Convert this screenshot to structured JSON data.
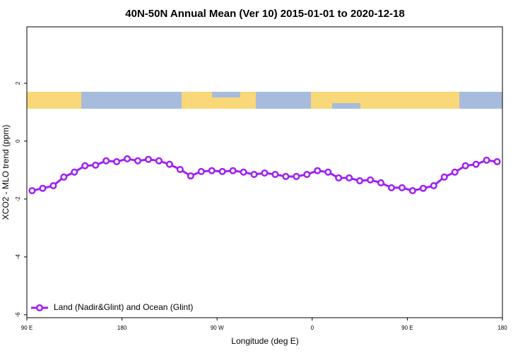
{
  "chart_data": {
    "type": "line",
    "title": "40N-50N Annual Mean (Ver 10)   2015-01-01 to 2020-12-18",
    "x_label": "Longitude (deg E)",
    "y_label": "XCO2 - MLO trend (ppm)",
    "xlim": [
      90,
      540
    ],
    "ylim": [
      -6.1,
      3.95
    ],
    "xticks": [
      {
        "value": 90,
        "label": "90 E"
      },
      180,
      {
        "value": 270,
        "label": "90 W"
      },
      {
        "value": 360,
        "label": "0"
      },
      {
        "value": 450,
        "label": "90 E"
      },
      {
        "value": 540,
        "label": "180"
      }
    ],
    "yticks": [
      -6,
      -4,
      -2,
      0,
      2
    ],
    "legend": "bottom-left",
    "x": [
      95,
      105,
      115,
      125,
      135,
      145,
      155,
      165,
      175,
      185,
      195,
      205,
      215,
      225,
      235,
      245,
      255,
      265,
      275,
      285,
      295,
      305,
      315,
      325,
      335,
      345,
      355,
      365,
      375,
      385,
      395,
      405,
      415,
      425,
      435,
      445,
      455,
      465,
      475,
      485,
      495,
      505,
      515,
      525,
      535
    ],
    "series": [
      {
        "name": "Land (Nadir&Glint) and Ocean (Glint)",
        "color": "#a020f0",
        "values": [
          -1.71,
          -1.63,
          -1.54,
          -1.24,
          -1.07,
          -0.85,
          -0.83,
          -0.68,
          -0.71,
          -0.61,
          -0.68,
          -0.63,
          -0.68,
          -0.8,
          -0.98,
          -1.2,
          -1.05,
          -1.02,
          -1.05,
          -1.02,
          -1.07,
          -1.15,
          -1.1,
          -1.15,
          -1.22,
          -1.22,
          -1.15,
          -1.02,
          -1.07,
          -1.27,
          -1.27,
          -1.37,
          -1.34,
          -1.44,
          -1.61,
          -1.61,
          -1.71,
          -1.63,
          -1.54,
          -1.24,
          -1.07,
          -0.85,
          -0.8,
          -0.66,
          -0.71
        ]
      }
    ]
  }
}
